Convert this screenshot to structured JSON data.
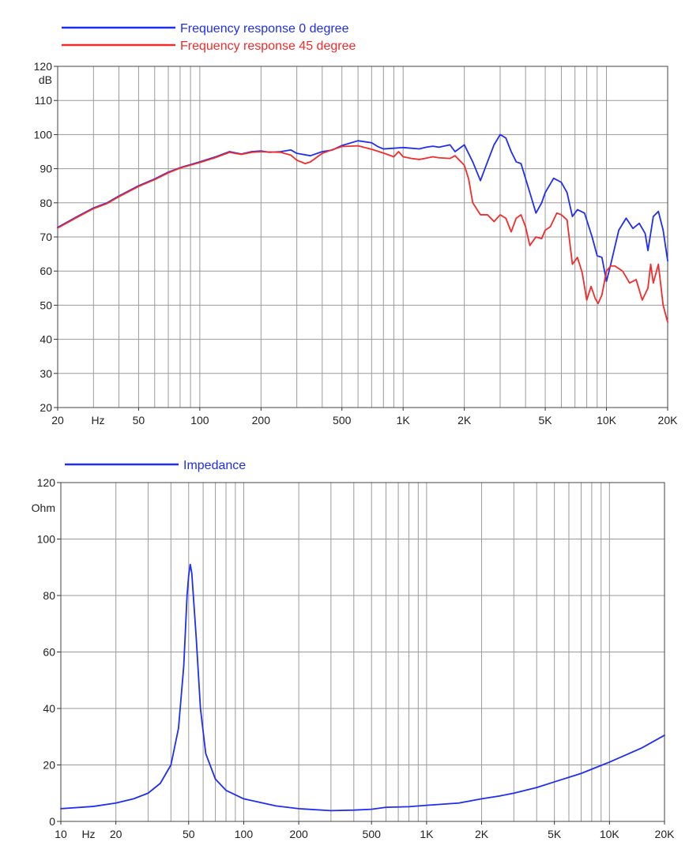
{
  "chart_data": [
    {
      "type": "line",
      "xscale": "log",
      "xlim": [
        20,
        20000
      ],
      "ylim": [
        20,
        120
      ],
      "ylabel": "dB",
      "xunit": "Hz",
      "grid": true,
      "legend_position": "top-left",
      "x_ticks": [
        {
          "value": 20,
          "label": "20"
        },
        {
          "value": 50,
          "label": "50"
        },
        {
          "value": 100,
          "label": "100"
        },
        {
          "value": 200,
          "label": "200"
        },
        {
          "value": 500,
          "label": "500"
        },
        {
          "value": 1000,
          "label": "1K"
        },
        {
          "value": 2000,
          "label": "2K"
        },
        {
          "value": 5000,
          "label": "5K"
        },
        {
          "value": 10000,
          "label": "10K"
        },
        {
          "value": 20000,
          "label": "20K"
        }
      ],
      "y_ticks": [
        20,
        30,
        40,
        50,
        60,
        70,
        80,
        90,
        100,
        110,
        120
      ],
      "series": [
        {
          "name": "Frequency response 0 degree",
          "color": "#1f2df5",
          "points": [
            [
              20,
              72.8
            ],
            [
              25,
              76
            ],
            [
              30,
              78.5
            ],
            [
              35,
              80
            ],
            [
              40,
              82
            ],
            [
              50,
              85
            ],
            [
              60,
              87
            ],
            [
              70,
              89
            ],
            [
              80,
              90.3
            ],
            [
              100,
              92
            ],
            [
              120,
              93.5
            ],
            [
              140,
              95
            ],
            [
              160,
              94.3
            ],
            [
              180,
              95
            ],
            [
              200,
              95.2
            ],
            [
              220,
              94.8
            ],
            [
              250,
              95
            ],
            [
              280,
              95.5
            ],
            [
              300,
              94.5
            ],
            [
              350,
              93.8
            ],
            [
              400,
              95
            ],
            [
              450,
              95.5
            ],
            [
              500,
              96.8
            ],
            [
              600,
              98.2
            ],
            [
              700,
              97.6
            ],
            [
              750,
              96.5
            ],
            [
              800,
              95.8
            ],
            [
              900,
              96
            ],
            [
              1000,
              96.2
            ],
            [
              1100,
              96
            ],
            [
              1200,
              95.8
            ],
            [
              1300,
              96.3
            ],
            [
              1400,
              96.6
            ],
            [
              1500,
              96.3
            ],
            [
              1700,
              97
            ],
            [
              1800,
              95
            ],
            [
              2000,
              97
            ],
            [
              2200,
              92
            ],
            [
              2400,
              86.5
            ],
            [
              2600,
              92
            ],
            [
              2800,
              97
            ],
            [
              3000,
              100
            ],
            [
              3200,
              99
            ],
            [
              3400,
              95
            ],
            [
              3600,
              92
            ],
            [
              3800,
              91.5
            ],
            [
              4200,
              83
            ],
            [
              4500,
              77
            ],
            [
              4800,
              80
            ],
            [
              5000,
              83
            ],
            [
              5500,
              87.2
            ],
            [
              6000,
              86
            ],
            [
              6400,
              83
            ],
            [
              6800,
              76
            ],
            [
              7200,
              78
            ],
            [
              7800,
              77
            ],
            [
              8500,
              70
            ],
            [
              9000,
              64.5
            ],
            [
              9500,
              64
            ],
            [
              10000,
              57
            ],
            [
              10500,
              62
            ],
            [
              11500,
              72
            ],
            [
              12500,
              75.5
            ],
            [
              13500,
              72.5
            ],
            [
              14500,
              74
            ],
            [
              15500,
              71
            ],
            [
              16000,
              66
            ],
            [
              17000,
              76
            ],
            [
              18000,
              77.5
            ],
            [
              19000,
              72
            ],
            [
              20000,
              63
            ]
          ]
        },
        {
          "name": "Frequency response 45 degree",
          "color": "#f52a2a",
          "points": [
            [
              20,
              72.6
            ],
            [
              25,
              75.8
            ],
            [
              30,
              78.3
            ],
            [
              35,
              79.8
            ],
            [
              40,
              81.8
            ],
            [
              50,
              84.8
            ],
            [
              60,
              86.8
            ],
            [
              70,
              88.8
            ],
            [
              80,
              90.2
            ],
            [
              100,
              91.8
            ],
            [
              120,
              93.3
            ],
            [
              140,
              94.8
            ],
            [
              160,
              94.2
            ],
            [
              180,
              94.8
            ],
            [
              200,
              95
            ],
            [
              220,
              94.9
            ],
            [
              250,
              94.8
            ],
            [
              280,
              94
            ],
            [
              300,
              92.5
            ],
            [
              330,
              91.5
            ],
            [
              350,
              92
            ],
            [
              400,
              94.5
            ],
            [
              450,
              95.6
            ],
            [
              500,
              96.5
            ],
            [
              600,
              96.7
            ],
            [
              700,
              95.7
            ],
            [
              800,
              94.6
            ],
            [
              900,
              93.5
            ],
            [
              950,
              95
            ],
            [
              1000,
              93.5
            ],
            [
              1100,
              93
            ],
            [
              1200,
              92.7
            ],
            [
              1300,
              93.1
            ],
            [
              1400,
              93.5
            ],
            [
              1500,
              93.2
            ],
            [
              1700,
              93
            ],
            [
              1800,
              93.8
            ],
            [
              2000,
              91
            ],
            [
              2100,
              87
            ],
            [
              2200,
              80
            ],
            [
              2400,
              76.5
            ],
            [
              2600,
              76.5
            ],
            [
              2800,
              74.5
            ],
            [
              3000,
              76.5
            ],
            [
              3200,
              75.5
            ],
            [
              3400,
              71.5
            ],
            [
              3600,
              75.5
            ],
            [
              3800,
              76.5
            ],
            [
              4000,
              73
            ],
            [
              4200,
              67.5
            ],
            [
              4500,
              70
            ],
            [
              4800,
              69.5
            ],
            [
              5000,
              72
            ],
            [
              5300,
              73
            ],
            [
              5700,
              77
            ],
            [
              6000,
              76.5
            ],
            [
              6400,
              75
            ],
            [
              6800,
              62
            ],
            [
              7200,
              64
            ],
            [
              7600,
              59.5
            ],
            [
              8000,
              51.5
            ],
            [
              8400,
              55.5
            ],
            [
              8800,
              52
            ],
            [
              9100,
              50.5
            ],
            [
              9500,
              53
            ],
            [
              10000,
              60
            ],
            [
              10500,
              61.5
            ],
            [
              11000,
              61.5
            ],
            [
              12000,
              60
            ],
            [
              13000,
              56.5
            ],
            [
              14000,
              57.5
            ],
            [
              15000,
              51.5
            ],
            [
              16000,
              55
            ],
            [
              16500,
              62
            ],
            [
              17000,
              56.5
            ],
            [
              18000,
              62
            ],
            [
              19000,
              50
            ],
            [
              20000,
              45
            ]
          ]
        }
      ]
    },
    {
      "type": "line",
      "xscale": "log",
      "xlim": [
        10,
        20000
      ],
      "ylim": [
        0,
        120
      ],
      "ylabel": "Ohm",
      "xunit": "Hz",
      "grid": true,
      "legend_position": "top-left",
      "x_ticks": [
        {
          "value": 10,
          "label": "10"
        },
        {
          "value": 20,
          "label": "20"
        },
        {
          "value": 50,
          "label": "50"
        },
        {
          "value": 100,
          "label": "100"
        },
        {
          "value": 200,
          "label": "200"
        },
        {
          "value": 500,
          "label": "500"
        },
        {
          "value": 1000,
          "label": "1K"
        },
        {
          "value": 2000,
          "label": "2K"
        },
        {
          "value": 5000,
          "label": "5K"
        },
        {
          "value": 10000,
          "label": "10K"
        },
        {
          "value": 20000,
          "label": "20K"
        }
      ],
      "y_ticks": [
        0,
        20,
        40,
        60,
        80,
        100,
        120
      ],
      "series": [
        {
          "name": "Impedance",
          "color": "#1f2df5",
          "points": [
            [
              10,
              4.5
            ],
            [
              15,
              5.3
            ],
            [
              20,
              6.5
            ],
            [
              25,
              8
            ],
            [
              30,
              10
            ],
            [
              35,
              13.5
            ],
            [
              40,
              20
            ],
            [
              44,
              33
            ],
            [
              47,
              55
            ],
            [
              49,
              80
            ],
            [
              50,
              87
            ],
            [
              51,
              91
            ],
            [
              52,
              88
            ],
            [
              55,
              65
            ],
            [
              58,
              40
            ],
            [
              62,
              24
            ],
            [
              70,
              15
            ],
            [
              80,
              11
            ],
            [
              100,
              8
            ],
            [
              150,
              5.5
            ],
            [
              200,
              4.5
            ],
            [
              300,
              3.8
            ],
            [
              400,
              4
            ],
            [
              500,
              4.3
            ],
            [
              600,
              5
            ],
            [
              800,
              5.2
            ],
            [
              1000,
              5.7
            ],
            [
              1500,
              6.5
            ],
            [
              2000,
              8
            ],
            [
              2500,
              9
            ],
            [
              3000,
              10
            ],
            [
              4000,
              12
            ],
            [
              5000,
              14
            ],
            [
              7000,
              17
            ],
            [
              10000,
              21
            ],
            [
              15000,
              26
            ],
            [
              20000,
              30.5
            ]
          ]
        }
      ]
    }
  ]
}
